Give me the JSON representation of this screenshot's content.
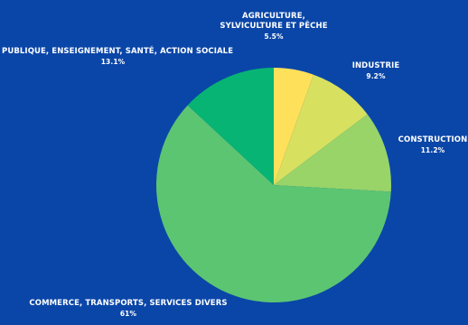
{
  "chart_data": {
    "type": "pie",
    "title": "",
    "slices": [
      {
        "label": "Agriculture,\nsylviculture et pêche",
        "value": 5.5,
        "display": "5.5%",
        "color": "#ffe05a"
      },
      {
        "label": "Industrie",
        "value": 9.2,
        "display": "9.2%",
        "color": "#d7e05f"
      },
      {
        "label": "Construction",
        "value": 11.2,
        "display": "11.2%",
        "color": "#99d468"
      },
      {
        "label": "Commerce, transports, services divers",
        "value": 61,
        "display": "61%",
        "color": "#5cc572"
      },
      {
        "label": "Publique, enseignement, santé, action sociale",
        "value": 13.1,
        "display": "13.1%",
        "color": "#07b474"
      }
    ],
    "legend": "none",
    "label_placement": "outside"
  }
}
